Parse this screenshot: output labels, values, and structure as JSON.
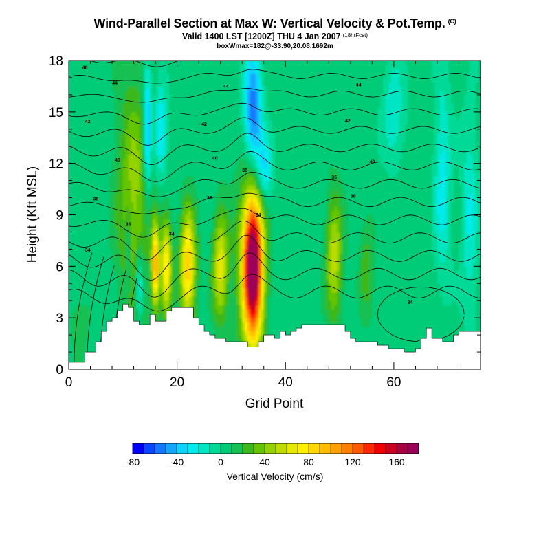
{
  "header": {
    "title": "Wind-Parallel Section at Max W: Vertical Velocity & Pot.Temp.",
    "title_mark": "(C)",
    "subtitle": "Valid 1400 LST [1200Z] THU 4 Jan 2007",
    "forecast_tag": "(18hrFcst)",
    "info": "boxWmax=182@-33.90,20.08,1692m"
  },
  "chart_data": {
    "type": "heatmap",
    "title": "Wind-Parallel Section at Max W: Vertical Velocity & Pot.Temp.",
    "xlabel": "Grid Point",
    "ylabel": "Height (Kft MSL)",
    "xlim": [
      0,
      76
    ],
    "ylim": [
      0,
      18
    ],
    "x_ticks": [
      0,
      20,
      40,
      60
    ],
    "x_tick_labels": [
      "0",
      "20",
      "40",
      "60"
    ],
    "y_ticks": [
      0,
      3,
      6,
      9,
      12,
      15,
      18
    ],
    "y_tick_labels": [
      "0",
      "3",
      "6",
      "9",
      "12",
      "15",
      "18"
    ],
    "grid": false,
    "colorbar": {
      "title": "Vertical Velocity (cm/s)",
      "min": -80,
      "max": 180,
      "step": 10,
      "tick_values": [
        -80,
        -40,
        0,
        40,
        80,
        120,
        160
      ],
      "tick_labels": [
        "-80",
        "-40",
        "0",
        "40",
        "80",
        "120",
        "160"
      ],
      "colors": [
        "#0000ff",
        "#0a46ff",
        "#1478ff",
        "#14a6ff",
        "#0fd2ff",
        "#00eaf0",
        "#00e6c4",
        "#00da96",
        "#00cc78",
        "#16c052",
        "#3cb81c",
        "#64c400",
        "#94d200",
        "#bedc00",
        "#e6e800",
        "#fff000",
        "#ffd600",
        "#ffbc00",
        "#ffa000",
        "#ff8000",
        "#ff5a00",
        "#ff2800",
        "#f00000",
        "#cc0020",
        "#a80040",
        "#9c0058"
      ]
    },
    "terrain_profile": {
      "x": [
        0,
        2,
        3,
        4,
        5,
        6,
        7,
        8,
        9,
        10,
        11,
        12,
        13,
        14,
        15,
        16,
        17,
        18,
        19,
        20,
        21,
        22,
        23,
        24,
        25,
        26,
        27,
        28,
        29,
        30,
        31,
        32,
        33,
        34,
        35,
        36,
        37,
        38,
        39,
        40,
        41,
        42,
        43,
        44,
        45,
        46,
        47,
        48,
        49,
        50,
        51,
        52,
        53,
        54,
        55,
        56,
        57,
        58,
        59,
        60,
        61,
        62,
        63,
        64,
        65,
        66,
        67,
        68,
        69,
        70,
        71,
        72,
        73,
        74,
        75,
        76
      ],
      "height": [
        0.4,
        0.4,
        1.0,
        1.0,
        1.6,
        2.2,
        2.8,
        3.0,
        3.4,
        3.8,
        3.6,
        2.8,
        2.6,
        2.6,
        3.2,
        2.8,
        2.8,
        3.4,
        3.6,
        3.6,
        3.6,
        3.6,
        3.0,
        2.6,
        2.2,
        2.0,
        1.8,
        1.8,
        1.6,
        1.6,
        1.6,
        1.6,
        1.3,
        1.3,
        1.6,
        2.0,
        2.0,
        1.8,
        2.2,
        2.0,
        2.2,
        2.4,
        2.6,
        2.6,
        2.6,
        2.6,
        2.6,
        2.6,
        2.6,
        2.6,
        2.2,
        1.8,
        1.6,
        1.6,
        1.6,
        1.6,
        1.4,
        1.4,
        1.2,
        1.2,
        1.2,
        1.0,
        1.0,
        1.2,
        1.8,
        2.4,
        1.8,
        1.8,
        1.6,
        1.6,
        2.0,
        2.2,
        2.2,
        2.2,
        2.2,
        2.2
      ]
    },
    "vertical_velocity_features": [
      {
        "x": 34,
        "y": 6.0,
        "x_halfwidth": 1.8,
        "y_halfwidth": 4.2,
        "value": 182
      },
      {
        "x": 33,
        "y": 6.0,
        "x_halfwidth": 3.0,
        "y_halfwidth": 5.5,
        "value": 20
      },
      {
        "x": 28,
        "y": 6.0,
        "x_halfwidth": 1.4,
        "y_halfwidth": 3.0,
        "value": 60
      },
      {
        "x": 22,
        "y": 6.0,
        "x_halfwidth": 1.4,
        "y_halfwidth": 3.2,
        "value": 85
      },
      {
        "x": 18,
        "y": 6.0,
        "x_halfwidth": 1.0,
        "y_halfwidth": 2.8,
        "value": 75
      },
      {
        "x": 16,
        "y": 6.0,
        "x_halfwidth": 0.7,
        "y_halfwidth": 2.4,
        "value": 95
      },
      {
        "x": 49,
        "y": 6.5,
        "x_halfwidth": 1.5,
        "y_halfwidth": 3.5,
        "value": 50
      },
      {
        "x": 55,
        "y": 6.0,
        "x_halfwidth": 1.3,
        "y_halfwidth": 3.0,
        "value": 20
      },
      {
        "x": 12,
        "y": 10.0,
        "x_halfwidth": 3.0,
        "y_halfwidth": 7.0,
        "value": 40
      },
      {
        "x": 13,
        "y": 5.0,
        "x_halfwidth": 0.7,
        "y_halfwidth": 2.0,
        "value": -45
      },
      {
        "x": 11,
        "y": 7.0,
        "x_halfwidth": 0.6,
        "y_halfwidth": 2.5,
        "value": -25
      },
      {
        "x": 14.5,
        "y": 14.0,
        "x_halfwidth": 0.8,
        "y_halfwidth": 4.0,
        "value": -55
      },
      {
        "x": 17,
        "y": 14.0,
        "x_halfwidth": 1.1,
        "y_halfwidth": 3.0,
        "value": -35
      },
      {
        "x": 34,
        "y": 15.0,
        "x_halfwidth": 1.6,
        "y_halfwidth": 3.5,
        "value": -65
      },
      {
        "x": 36,
        "y": 11.5,
        "x_halfwidth": 1.5,
        "y_halfwidth": 2.0,
        "value": -40
      },
      {
        "x": 60,
        "y": 15.0,
        "x_halfwidth": 2.0,
        "y_halfwidth": 3.0,
        "value": -25
      },
      {
        "x": 69,
        "y": 11.0,
        "x_halfwidth": 1.5,
        "y_halfwidth": 6.0,
        "value": -30
      },
      {
        "x": 74,
        "y": 9.0,
        "x_halfwidth": 1.5,
        "y_halfwidth": 6.0,
        "value": -25
      },
      {
        "x": 2,
        "y": 3.0,
        "x_halfwidth": 2.0,
        "y_halfwidth": 2.0,
        "value": 10
      }
    ],
    "potential_temperature_contours": {
      "levels": [
        32,
        33,
        34,
        35,
        36,
        37,
        38,
        39,
        40,
        41,
        42,
        43,
        44,
        45,
        46,
        47,
        48
      ],
      "labels": [
        {
          "text": "34",
          "x": 3.5,
          "y": 6.95
        },
        {
          "text": "36",
          "x": 11,
          "y": 8.45
        },
        {
          "text": "38",
          "x": 5,
          "y": 9.95
        },
        {
          "text": "40",
          "x": 9,
          "y": 12.2
        },
        {
          "text": "42",
          "x": 3.5,
          "y": 14.45
        },
        {
          "text": "44",
          "x": 8.5,
          "y": 16.7
        },
        {
          "text": "46",
          "x": 3,
          "y": 17.6
        },
        {
          "text": "36",
          "x": 26,
          "y": 10.0
        },
        {
          "text": "38",
          "x": 32.5,
          "y": 11.6
        },
        {
          "text": "40",
          "x": 27,
          "y": 12.3
        },
        {
          "text": "42",
          "x": 25,
          "y": 14.3
        },
        {
          "text": "44",
          "x": 29,
          "y": 16.5
        },
        {
          "text": "34",
          "x": 19,
          "y": 7.9
        },
        {
          "text": "34",
          "x": 35,
          "y": 9.0
        },
        {
          "text": "36",
          "x": 49,
          "y": 11.2
        },
        {
          "text": "38",
          "x": 52.5,
          "y": 10.1
        },
        {
          "text": "40",
          "x": 56,
          "y": 12.1
        },
        {
          "text": "42",
          "x": 51.5,
          "y": 14.5
        },
        {
          "text": "44",
          "x": 53.5,
          "y": 16.6
        },
        {
          "text": "34",
          "x": 63,
          "y": 3.9
        }
      ]
    }
  }
}
